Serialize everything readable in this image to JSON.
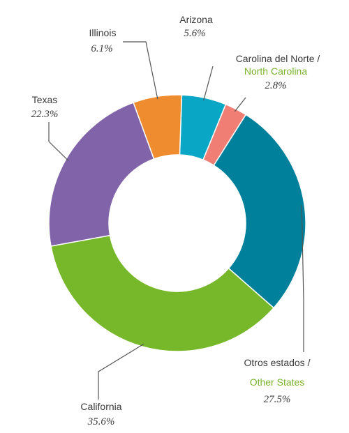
{
  "chart_data": {
    "type": "pie",
    "donut": true,
    "slices": [
      {
        "key": "arizona",
        "label": "Arizona",
        "label_en": "",
        "value": 5.6,
        "value_text": "5.6%",
        "color": "#0aa6c6"
      },
      {
        "key": "north-carolina",
        "label": "Carolina del Norte /",
        "label_en": "North Carolina",
        "value": 2.8,
        "value_text": "2.8%",
        "color": "#f07e74"
      },
      {
        "key": "other-states",
        "label": "Otros estados /",
        "label_en": "Other States",
        "value": 27.5,
        "value_text": "27.5%",
        "color": "#00809a"
      },
      {
        "key": "california",
        "label": "California",
        "label_en": "",
        "value": 35.6,
        "value_text": "35.6%",
        "color": "#76b82a"
      },
      {
        "key": "texas",
        "label": "Texas",
        "label_en": "",
        "value": 22.3,
        "value_text": "22.3%",
        "color": "#8063a8"
      },
      {
        "key": "illinois",
        "label": "Illinois",
        "label_en": "",
        "value": 6.1,
        "value_text": "6.1%",
        "color": "#ef8c2f"
      }
    ],
    "accent_color_en_label": "#7ab22a",
    "legend": "none"
  }
}
